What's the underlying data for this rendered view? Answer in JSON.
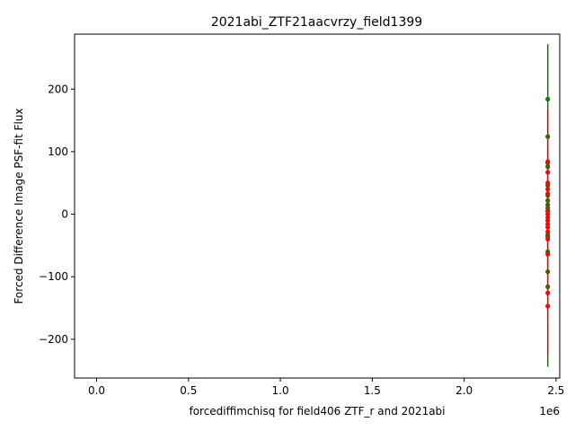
{
  "chart_data": {
    "type": "scatter",
    "title": "2021abi_ZTF21aacvrzy_field1399",
    "xlabel": "forcediffimchisq for field406 ZTF_r and 2021abi",
    "ylabel": "Forced Difference Image PSF-fit Flux",
    "x_offset_label": "1e6",
    "xlim": [
      -0.12,
      2.52
    ],
    "ylim": [
      -262,
      288
    ],
    "x_ticks": [
      0.0,
      0.5,
      1.0,
      1.5,
      2.0,
      2.5
    ],
    "x_tick_labels": [
      "0.0",
      "0.5",
      "1.0",
      "1.5",
      "2.0",
      "2.5"
    ],
    "y_ticks": [
      -200,
      -100,
      0,
      100,
      200
    ],
    "y_tick_labels": [
      "−200",
      "−100",
      "0",
      "100",
      "200"
    ],
    "grid": false,
    "series": [
      {
        "color": "#008000",
        "x": 2.455,
        "points": [
          {
            "y": 184,
            "err": 88
          },
          {
            "y": 124,
            "err": 40
          },
          {
            "y": 82,
            "err": 20
          },
          {
            "y": 76,
            "err": 20
          },
          {
            "y": 46,
            "err": 15
          },
          {
            "y": 30,
            "err": 15
          },
          {
            "y": 22,
            "err": 15
          },
          {
            "y": 15,
            "err": 15
          },
          {
            "y": 10,
            "err": 15
          },
          {
            "y": 5,
            "err": 15
          },
          {
            "y": -33,
            "err": 20
          },
          {
            "y": -36,
            "err": 20
          },
          {
            "y": -60,
            "err": 20
          },
          {
            "y": -92,
            "err": 30
          },
          {
            "y": -116,
            "err": 128
          }
        ]
      },
      {
        "color": "#ff0000",
        "x": 2.455,
        "points": [
          {
            "y": 84,
            "err": 84
          },
          {
            "y": 67,
            "err": 30
          },
          {
            "y": 50,
            "err": 20
          },
          {
            "y": 40,
            "err": 20
          },
          {
            "y": 33,
            "err": 15
          },
          {
            "y": 5,
            "err": 15
          },
          {
            "y": 0,
            "err": 15
          },
          {
            "y": -5,
            "err": 15
          },
          {
            "y": -10,
            "err": 15
          },
          {
            "y": -16,
            "err": 15
          },
          {
            "y": -21,
            "err": 15
          },
          {
            "y": -28,
            "err": 15
          },
          {
            "y": -40,
            "err": 20
          },
          {
            "y": -64,
            "err": 20
          },
          {
            "y": -126,
            "err": 40
          },
          {
            "y": -147,
            "err": 80
          }
        ]
      }
    ]
  }
}
